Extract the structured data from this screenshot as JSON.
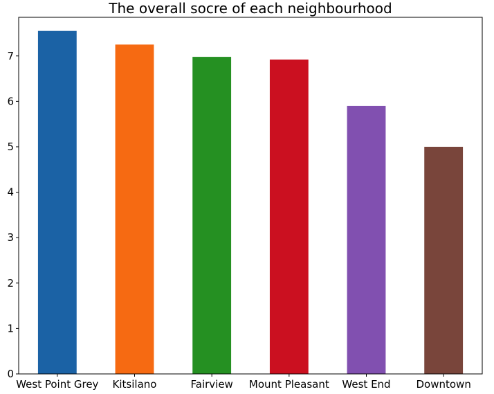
{
  "chart_data": {
    "type": "bar",
    "title": "The overall socre of each neighbourhood",
    "xlabel": "",
    "ylabel": "",
    "categories": [
      "West Point Grey",
      "Kitsilano",
      "Fairview",
      "Mount Pleasant",
      "West End",
      "Downtown"
    ],
    "values": [
      7.55,
      7.25,
      6.98,
      6.92,
      5.9,
      5.0
    ],
    "colors": [
      "#1b62a5",
      "#f66a12",
      "#259022",
      "#cb1020",
      "#8150b0",
      "#79453b"
    ],
    "ylim": [
      0,
      7.85
    ],
    "yticks": [
      0,
      1,
      2,
      3,
      4,
      5,
      6,
      7
    ],
    "ytick_labels": [
      "0",
      "1",
      "2",
      "3",
      "4",
      "5",
      "6",
      "7"
    ],
    "grid": false,
    "legend": "none"
  }
}
